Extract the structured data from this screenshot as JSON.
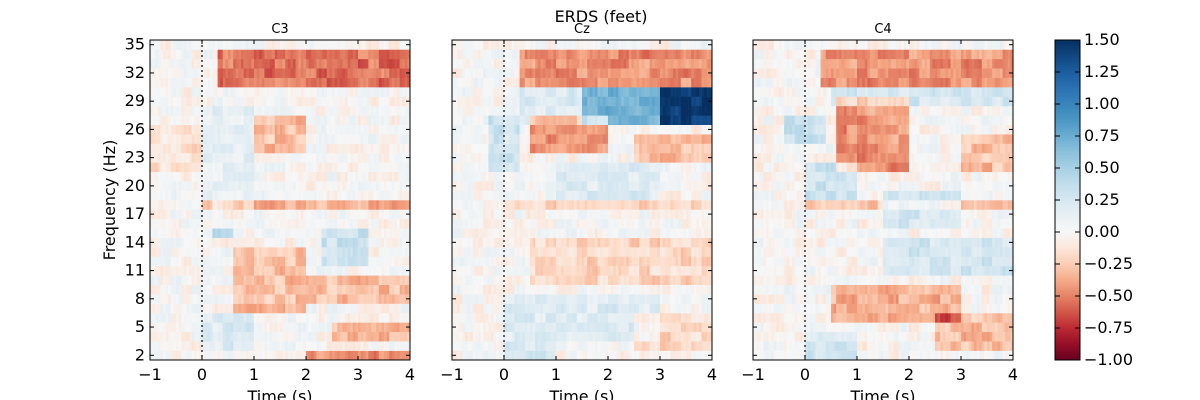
{
  "chart_data": {
    "type": "heatmap",
    "title": "ERDS (feet)",
    "xlabel": "Time (s)",
    "ylabel": "Frequency (Hz)",
    "xlim": [
      -1,
      4
    ],
    "ylim": [
      1.5,
      35.5
    ],
    "xticks": [
      -1,
      0,
      1,
      2,
      3,
      4
    ],
    "xtick_labels": [
      "−1",
      "0",
      "1",
      "2",
      "3",
      "4"
    ],
    "yticks": [
      2,
      5,
      8,
      11,
      14,
      17,
      20,
      23,
      26,
      29,
      32,
      35
    ],
    "ytick_labels": [
      "2",
      "5",
      "8",
      "11",
      "14",
      "17",
      "20",
      "23",
      "26",
      "29",
      "32",
      "35"
    ],
    "event_marker_time": 0,
    "freq_step_hz": 1,
    "colormap": {
      "name": "RdBu",
      "vmin": -1.0,
      "vmax": 1.5,
      "ticks": [
        -1.0,
        -0.75,
        -0.5,
        -0.25,
        0.0,
        0.25,
        0.5,
        0.75,
        1.0,
        1.25,
        1.5
      ],
      "tick_labels": [
        "−1.00",
        "−0.75",
        "−0.50",
        "−0.25",
        "0.00",
        "0.25",
        "0.50",
        "0.75",
        "1.00",
        "1.25",
        "1.50"
      ]
    },
    "panels": [
      {
        "channel": "C3",
        "regions": [
          {
            "t": [
              0.3,
              4.0
            ],
            "f": [
              30.5,
              34.5
            ],
            "v": -0.55
          },
          {
            "t": [
              1.0,
              2.0
            ],
            "f": [
              24.0,
              27.0
            ],
            "v": -0.3
          },
          {
            "t": [
              0.0,
              1.0
            ],
            "f": [
              18.0,
              28.0
            ],
            "v": 0.15
          },
          {
            "t": [
              0.0,
              4.0
            ],
            "f": [
              17.5,
              18.5
            ],
            "v": -0.35
          },
          {
            "t": [
              0.2,
              0.6
            ],
            "f": [
              14.5,
              15.5
            ],
            "v": 0.45
          },
          {
            "t": [
              2.3,
              3.2
            ],
            "f": [
              12.0,
              15.0
            ],
            "v": 0.3
          },
          {
            "t": [
              0.6,
              2.0
            ],
            "f": [
              7.0,
              13.0
            ],
            "v": -0.3
          },
          {
            "t": [
              2.0,
              4.0
            ],
            "f": [
              8.0,
              10.0
            ],
            "v": -0.3
          },
          {
            "t": [
              2.5,
              4.0
            ],
            "f": [
              4.0,
              5.0
            ],
            "v": -0.3
          },
          {
            "t": [
              2.0,
              4.0
            ],
            "f": [
              1.5,
              2.5
            ],
            "v": -0.45
          },
          {
            "t": [
              0.0,
              1.0
            ],
            "f": [
              3.0,
              6.0
            ],
            "v": 0.2
          },
          {
            "t": [
              -1.0,
              0.0
            ],
            "f": [
              22.0,
              26.0
            ],
            "v": -0.15
          }
        ]
      },
      {
        "channel": "Cz",
        "regions": [
          {
            "t": [
              0.3,
              4.0
            ],
            "f": [
              31.0,
              34.5
            ],
            "v": -0.45
          },
          {
            "t": [
              0.3,
              4.0
            ],
            "f": [
              27.0,
              30.0
            ],
            "v": 0.2
          },
          {
            "t": [
              1.5,
              4.0
            ],
            "f": [
              27.0,
              30.0
            ],
            "v": 0.55
          },
          {
            "t": [
              3.0,
              4.0
            ],
            "f": [
              27.0,
              30.0
            ],
            "v": 0.7
          },
          {
            "t": [
              0.5,
              2.0
            ],
            "f": [
              23.5,
              27.0
            ],
            "v": -0.45
          },
          {
            "t": [
              2.5,
              4.0
            ],
            "f": [
              23.0,
              25.0
            ],
            "v": -0.3
          },
          {
            "t": [
              -0.3,
              0.3
            ],
            "f": [
              22.0,
              27.0
            ],
            "v": 0.3
          },
          {
            "t": [
              1.0,
              3.0
            ],
            "f": [
              19.0,
              22.0
            ],
            "v": 0.2
          },
          {
            "t": [
              0.0,
              4.0
            ],
            "f": [
              17.5,
              18.5
            ],
            "v": -0.2
          },
          {
            "t": [
              0.5,
              4.0
            ],
            "f": [
              10.0,
              14.0
            ],
            "v": -0.2
          },
          {
            "t": [
              0.0,
              3.0
            ],
            "f": [
              4.0,
              8.0
            ],
            "v": 0.2
          },
          {
            "t": [
              2.5,
              4.0
            ],
            "f": [
              3.0,
              6.0
            ],
            "v": -0.2
          },
          {
            "t": [
              0.0,
              1.0
            ],
            "f": [
              1.5,
              3.0
            ],
            "v": 0.25
          }
        ]
      },
      {
        "channel": "C4",
        "regions": [
          {
            "t": [
              0.3,
              4.0
            ],
            "f": [
              31.0,
              34.5
            ],
            "v": -0.45
          },
          {
            "t": [
              0.5,
              4.0
            ],
            "f": [
              29.0,
              30.0
            ],
            "v": 0.25
          },
          {
            "t": [
              0.6,
              2.0
            ],
            "f": [
              22.0,
              29.0
            ],
            "v": -0.45
          },
          {
            "t": [
              3.0,
              4.0
            ],
            "f": [
              22.0,
              25.0
            ],
            "v": -0.3
          },
          {
            "t": [
              -0.4,
              0.4
            ],
            "f": [
              25.0,
              27.0
            ],
            "v": 0.35
          },
          {
            "t": [
              0.0,
              1.0
            ],
            "f": [
              19.0,
              22.0
            ],
            "v": 0.3
          },
          {
            "t": [
              1.5,
              3.0
            ],
            "f": [
              15.5,
              19.0
            ],
            "v": 0.25
          },
          {
            "t": [
              0.0,
              4.0
            ],
            "f": [
              17.5,
              18.5
            ],
            "v": -0.25
          },
          {
            "t": [
              1.5,
              4.0
            ],
            "f": [
              11.0,
              14.0
            ],
            "v": 0.25
          },
          {
            "t": [
              0.5,
              3.0
            ],
            "f": [
              6.0,
              9.0
            ],
            "v": -0.35
          },
          {
            "t": [
              2.5,
              4.0
            ],
            "f": [
              3.0,
              6.0
            ],
            "v": -0.3
          },
          {
            "t": [
              0.0,
              1.0
            ],
            "f": [
              1.5,
              4.0
            ],
            "v": 0.25
          }
        ]
      }
    ]
  }
}
